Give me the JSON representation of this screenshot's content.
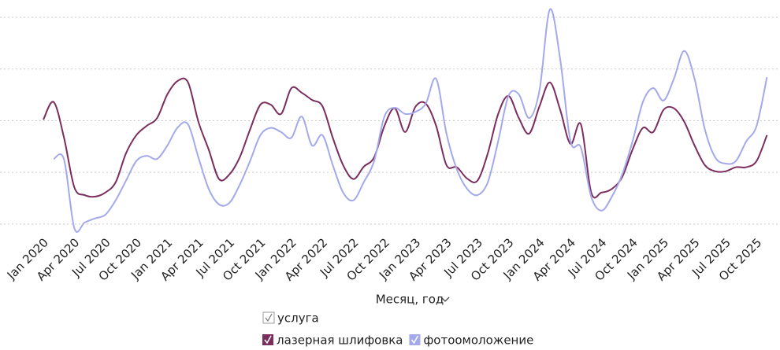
{
  "chart_data": {
    "type": "line",
    "x_label": "Месяц, год",
    "legend_title": "услуга",
    "categories": [
      "Jan 2020",
      null,
      null,
      "Apr 2020",
      null,
      null,
      "Jul 2020",
      null,
      null,
      "Oct 2020",
      null,
      null,
      "Jan 2021",
      null,
      null,
      "Apr 2021",
      null,
      null,
      "Jul 2021",
      null,
      null,
      "Oct 2021",
      null,
      null,
      "Jan 2022",
      null,
      null,
      "Apr 2022",
      null,
      null,
      "Jul 2022",
      null,
      null,
      "Oct 2022",
      null,
      null,
      "Jan 2023",
      null,
      null,
      "Apr 2023",
      null,
      null,
      "Jul 2023",
      null,
      null,
      "Oct 2023",
      null,
      null,
      "Jan 2024",
      null,
      null,
      "Apr 2024",
      null,
      null,
      "Jul 2024",
      null,
      null,
      "Oct 2024",
      null,
      null,
      "Jan 2025",
      null,
      null,
      "Apr 2025",
      null,
      null,
      "Jul 2025",
      null,
      null,
      "Oct 2025",
      null
    ],
    "series": [
      {
        "name": "лазерная шлифовка",
        "color": "#7b2d5e",
        "values": [
          2.02,
          2.36,
          1.67,
          0.71,
          0.56,
          0.53,
          0.61,
          0.81,
          1.37,
          1.72,
          1.9,
          2.05,
          2.51,
          2.77,
          2.74,
          1.98,
          1.44,
          0.87,
          0.96,
          1.29,
          1.83,
          2.31,
          2.31,
          2.13,
          2.63,
          2.54,
          2.4,
          2.28,
          1.67,
          1.14,
          0.87,
          1.11,
          1.29,
          1.9,
          2.24,
          1.78,
          2.27,
          2.33,
          1.9,
          1.14,
          1.1,
          0.88,
          0.84,
          1.37,
          2.13,
          2.48,
          2.05,
          1.75,
          2.28,
          2.74,
          2.21,
          1.55,
          1.93,
          0.61,
          0.61,
          0.68,
          0.91,
          1.44,
          1.86,
          1.78,
          2.21,
          2.24,
          1.98,
          1.52,
          1.14,
          1.02,
          1.02,
          1.1,
          1.1,
          1.22,
          1.72
        ]
      },
      {
        "name": "фотоомоложение",
        "color": "#a3a9ea",
        "values": [
          null,
          1.26,
          1.25,
          -0.08,
          0.03,
          0.11,
          0.18,
          0.46,
          0.84,
          1.22,
          1.32,
          1.26,
          1.52,
          1.87,
          1.93,
          1.29,
          0.68,
          0.38,
          0.41,
          0.76,
          1.22,
          1.72,
          1.86,
          1.78,
          1.67,
          2.08,
          1.52,
          1.72,
          1.14,
          0.61,
          0.46,
          0.81,
          1.22,
          2.08,
          2.25,
          2.13,
          2.17,
          2.33,
          2.81,
          1.75,
          1.06,
          0.68,
          0.56,
          0.81,
          1.6,
          2.48,
          2.51,
          2.05,
          2.59,
          4.15,
          3.19,
          1.6,
          1.48,
          0.53,
          0.26,
          0.53,
          0.96,
          1.6,
          2.36,
          2.63,
          2.39,
          2.81,
          3.35,
          2.81,
          1.83,
          1.29,
          1.17,
          1.22,
          1.6,
          1.9,
          2.84
        ]
      }
    ],
    "ylim": [
      -0.2,
      4.2
    ],
    "yticks": [
      0,
      1,
      2,
      3,
      4
    ],
    "ytick_labels": false,
    "grid": true
  }
}
